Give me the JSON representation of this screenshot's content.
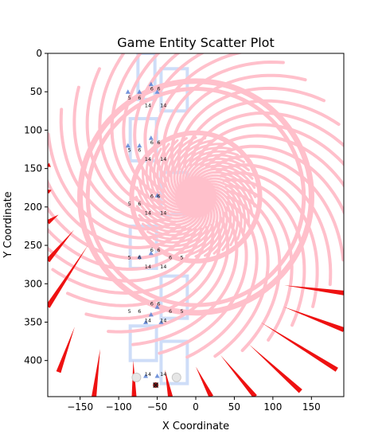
{
  "chart_data": {
    "type": "scatter",
    "title": "Game Entity Scatter Plot",
    "xlabel": "X Coordinate",
    "ylabel": "Y Coordinate",
    "xlim": [
      -192,
      192
    ],
    "ylim": [
      447,
      0
    ],
    "y_inverted": true,
    "grid": false,
    "x_ticks": [
      -150,
      -100,
      -50,
      0,
      50,
      100,
      150
    ],
    "y_ticks": [
      0,
      50,
      100,
      150,
      200,
      250,
      300,
      350,
      400
    ],
    "vortex": {
      "center": [
        0,
        187
      ],
      "ring_radius": 77,
      "arm_count": 36,
      "inner_arm_count": 40,
      "inner_radius": 77,
      "color": "#ffc0cb"
    },
    "corridor_tiles": [
      {
        "x": -45,
        "y": 20,
        "w": 34,
        "h": 55
      },
      {
        "x": -85,
        "y": 85,
        "w": 34,
        "h": 55
      },
      {
        "x": -45,
        "y": 155,
        "w": 34,
        "h": 55
      },
      {
        "x": -85,
        "y": 225,
        "w": 34,
        "h": 55
      },
      {
        "x": -45,
        "y": 290,
        "w": 34,
        "h": 55
      },
      {
        "x": -85,
        "y": 355,
        "w": 34,
        "h": 45
      },
      {
        "x": -45,
        "y": 375,
        "w": 34,
        "h": 55
      },
      {
        "x": -75,
        "y": 0,
        "w": 22,
        "h": 60
      }
    ],
    "tile_color": "#c9d9f7",
    "entities": [
      {
        "x": -88,
        "y": 50,
        "marker": "triangle"
      },
      {
        "x": -73,
        "y": 50,
        "marker": "triangle"
      },
      {
        "x": -58,
        "y": 40,
        "marker": "triangle"
      },
      {
        "x": -50,
        "y": 50,
        "marker": "triangle"
      },
      {
        "x": -88,
        "y": 120,
        "marker": "triangle"
      },
      {
        "x": -73,
        "y": 120,
        "marker": "triangle"
      },
      {
        "x": -58,
        "y": 110,
        "marker": "triangle"
      },
      {
        "x": -50,
        "y": 185,
        "marker": "triangle"
      },
      {
        "x": -58,
        "y": 260,
        "marker": "triangle"
      },
      {
        "x": -73,
        "y": 265,
        "marker": "triangle"
      },
      {
        "x": -50,
        "y": 330,
        "marker": "triangle"
      },
      {
        "x": -58,
        "y": 340,
        "marker": "triangle"
      },
      {
        "x": -45,
        "y": 350,
        "marker": "triangle"
      },
      {
        "x": -65,
        "y": 350,
        "marker": "triangle"
      },
      {
        "x": -65,
        "y": 420,
        "marker": "triangle"
      },
      {
        "x": -50,
        "y": 420,
        "marker": "triangle"
      }
    ],
    "player": {
      "x": -52,
      "y": 432,
      "color": "#8b1a1a"
    },
    "orbs": [
      {
        "x": -77,
        "y": 422
      },
      {
        "x": -25,
        "y": 422
      }
    ],
    "labels": [
      {
        "x": -57,
        "y": -22,
        "text": "6"
      },
      {
        "x": -48,
        "y": -22,
        "text": "6"
      },
      {
        "x": -62,
        "y": 0,
        "text": "14"
      },
      {
        "x": -42,
        "y": 0,
        "text": "14"
      },
      {
        "x": -86,
        "y": 60,
        "text": "5"
      },
      {
        "x": -73,
        "y": 60,
        "text": "6"
      },
      {
        "x": -57,
        "y": 48,
        "text": "6"
      },
      {
        "x": -48,
        "y": 48,
        "text": "6"
      },
      {
        "x": -62,
        "y": 70,
        "text": "14"
      },
      {
        "x": -42,
        "y": 70,
        "text": "14"
      },
      {
        "x": -86,
        "y": 128,
        "text": "5"
      },
      {
        "x": -73,
        "y": 128,
        "text": "6"
      },
      {
        "x": -57,
        "y": 118,
        "text": "6"
      },
      {
        "x": -48,
        "y": 118,
        "text": "6"
      },
      {
        "x": -62,
        "y": 140,
        "text": "14"
      },
      {
        "x": -42,
        "y": 140,
        "text": "14"
      },
      {
        "x": -86,
        "y": 198,
        "text": "5"
      },
      {
        "x": -73,
        "y": 198,
        "text": "6"
      },
      {
        "x": -57,
        "y": 188,
        "text": "6"
      },
      {
        "x": -48,
        "y": 188,
        "text": "6"
      },
      {
        "x": -62,
        "y": 210,
        "text": "14"
      },
      {
        "x": -42,
        "y": 210,
        "text": "14"
      },
      {
        "x": -86,
        "y": 268,
        "text": "5"
      },
      {
        "x": -73,
        "y": 268,
        "text": "6"
      },
      {
        "x": -57,
        "y": 258,
        "text": "6"
      },
      {
        "x": -48,
        "y": 258,
        "text": "6"
      },
      {
        "x": -33,
        "y": 268,
        "text": "6"
      },
      {
        "x": -18,
        "y": 268,
        "text": "5"
      },
      {
        "x": -62,
        "y": 280,
        "text": "14"
      },
      {
        "x": -42,
        "y": 280,
        "text": "14"
      },
      {
        "x": -86,
        "y": 338,
        "text": "5"
      },
      {
        "x": -73,
        "y": 338,
        "text": "6"
      },
      {
        "x": -57,
        "y": 328,
        "text": "6"
      },
      {
        "x": -48,
        "y": 328,
        "text": "6"
      },
      {
        "x": -33,
        "y": 338,
        "text": "6"
      },
      {
        "x": -18,
        "y": 338,
        "text": "5"
      },
      {
        "x": -62,
        "y": 350,
        "text": "14"
      },
      {
        "x": -42,
        "y": 350,
        "text": "14"
      },
      {
        "x": -62,
        "y": 420,
        "text": "14"
      },
      {
        "x": -42,
        "y": 420,
        "text": "14"
      }
    ],
    "spikes": [
      {
        "x1": -192,
        "y1": 145,
        "x2": -188,
        "y2": 148
      },
      {
        "x1": -192,
        "y1": 180,
        "x2": -187,
        "y2": 178
      },
      {
        "x1": -192,
        "y1": 220,
        "x2": -178,
        "y2": 210
      },
      {
        "x1": -192,
        "y1": 270,
        "x2": -158,
        "y2": 230
      },
      {
        "x1": -192,
        "y1": 330,
        "x2": -140,
        "y2": 250
      },
      {
        "x1": -178,
        "y1": 415,
        "x2": -157,
        "y2": 356
      },
      {
        "x1": -132,
        "y1": 447,
        "x2": -124,
        "y2": 385
      },
      {
        "x1": -80,
        "y1": 447,
        "x2": -81,
        "y2": 400
      },
      {
        "x1": -33,
        "y1": 447,
        "x2": -40,
        "y2": 412
      },
      {
        "x1": 20,
        "y1": 447,
        "x2": 0,
        "y2": 408
      },
      {
        "x1": 77,
        "y1": 447,
        "x2": 32,
        "y2": 393
      },
      {
        "x1": 136,
        "y1": 440,
        "x2": 69,
        "y2": 379
      },
      {
        "x1": 183,
        "y1": 412,
        "x2": 84,
        "y2": 350
      },
      {
        "x1": 192,
        "y1": 360,
        "x2": 114,
        "y2": 330
      },
      {
        "x1": 192,
        "y1": 312,
        "x2": 115,
        "y2": 302
      }
    ],
    "spike_color": "#ee1111"
  }
}
